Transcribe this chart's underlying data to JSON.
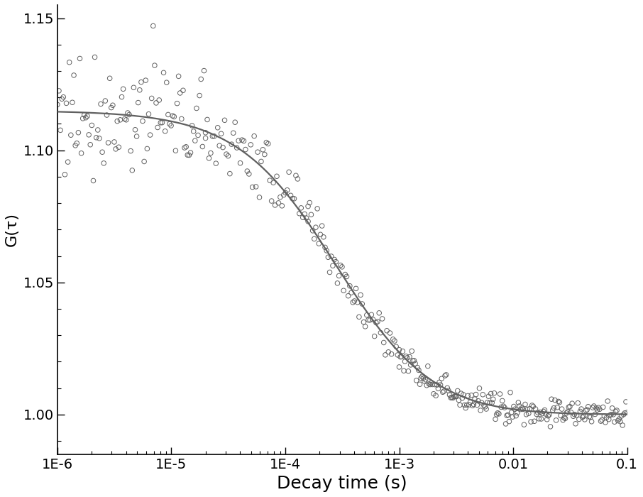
{
  "title": "",
  "xlabel": "Decay time (s)",
  "ylabel": "G(τ)",
  "xlim_log": [
    -6,
    -1
  ],
  "ylim": [
    0.985,
    1.155
  ],
  "yticks": [
    1.0,
    1.05,
    1.1,
    1.15
  ],
  "xtick_labels": [
    "1E-6",
    "1E-5",
    "1E-4",
    "1E-3",
    "0.01",
    "0.1"
  ],
  "background_color": "#ffffff",
  "scatter_color": "none",
  "scatter_edgecolor": "#606060",
  "line_color": "#606060",
  "fit_G0": 0.115,
  "fit_tau_D": 0.00028,
  "fit_S": 5.0,
  "fit_baseline": 1.0,
  "scatter_marker": "o",
  "scatter_size": 22,
  "line_width": 1.6,
  "xlabel_fontsize": 18,
  "ylabel_fontsize": 16,
  "tick_fontsize": 14,
  "seed": 77
}
